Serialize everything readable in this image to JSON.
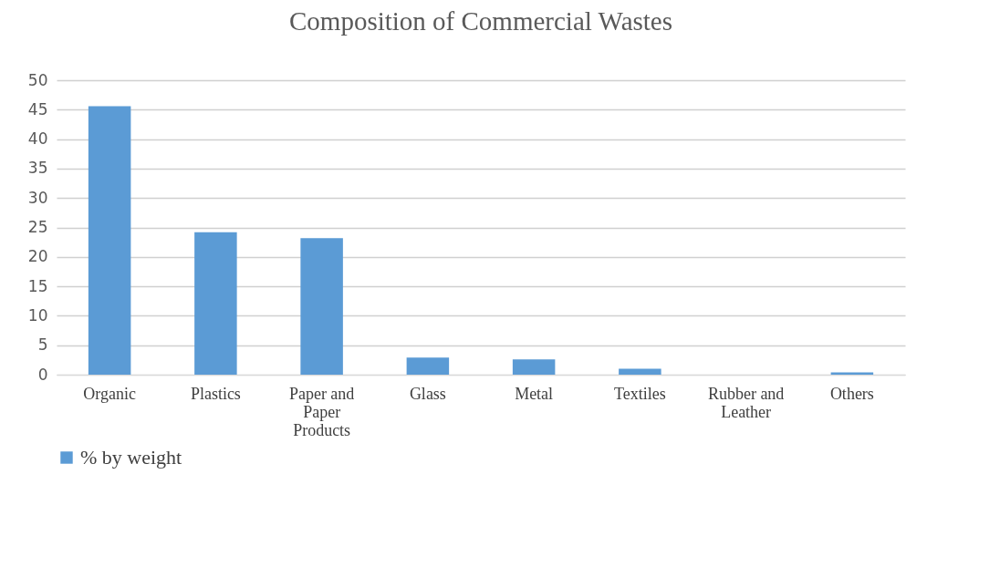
{
  "chart_data": {
    "type": "bar",
    "title": "Composition of Commercial Wastes",
    "categories": [
      "Organic",
      "Plastics",
      "Paper and Paper Products",
      "Glass",
      "Metal",
      "Textiles",
      "Rubber and Leather",
      "Others"
    ],
    "series": [
      {
        "name": "% by weight",
        "color": "#5b9bd5",
        "values": [
          45.6,
          24.2,
          23.2,
          2.9,
          2.6,
          1.0,
          0,
          0.4
        ]
      }
    ],
    "ylim": [
      0,
      50
    ],
    "yticks": [
      0,
      5,
      10,
      15,
      20,
      25,
      30,
      35,
      40,
      45,
      50
    ],
    "grid": "y",
    "legend": "bottom"
  }
}
